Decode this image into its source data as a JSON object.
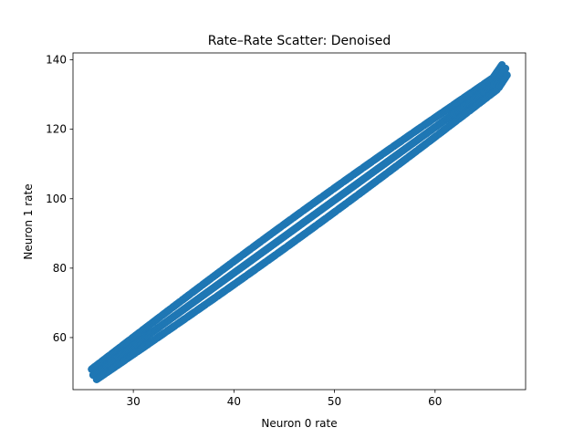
{
  "chart_data": {
    "type": "scatter",
    "title": "Rate–Rate Scatter: Denoised",
    "xlabel": "Neuron 0 rate",
    "ylabel": "Neuron 1 rate",
    "xlim": [
      24.0,
      69.0
    ],
    "ylim": [
      45.0,
      142.0
    ],
    "xticks": [
      30,
      40,
      50,
      60
    ],
    "yticks": [
      60,
      80,
      100,
      120,
      140
    ],
    "grid": false,
    "legend": "none",
    "marker_color": "#1f77b4",
    "series": [
      {
        "x": [
          26.0,
          27.0,
          28.0,
          29.0,
          30.0,
          31.0,
          32.0,
          33.0,
          34.0,
          35.0,
          36.0,
          37.0,
          38.0,
          39.0,
          40.0,
          41.0,
          42.0,
          43.0,
          44.0,
          45.0,
          46.0,
          47.0,
          48.0,
          49.0,
          50.0,
          51.0,
          52.0,
          53.0,
          54.0,
          55.0,
          56.0,
          57.0,
          58.0,
          59.0,
          60.0,
          61.0,
          62.0,
          63.0,
          64.0,
          65.0,
          66.0,
          67.0
        ],
        "y": [
          49.2,
          51.3,
          53.4,
          55.5,
          57.6,
          59.7,
          61.8,
          63.9,
          66.0,
          68.1,
          70.2,
          72.3,
          74.4,
          76.5,
          78.6,
          80.7,
          82.8,
          84.9,
          87.0,
          89.1,
          91.2,
          93.3,
          95.4,
          97.5,
          99.6,
          101.7,
          103.8,
          105.9,
          108.0,
          110.1,
          112.2,
          114.3,
          116.4,
          118.5,
          120.6,
          122.7,
          124.8,
          126.9,
          129.0,
          131.1,
          133.2,
          137.5
        ]
      }
    ]
  }
}
